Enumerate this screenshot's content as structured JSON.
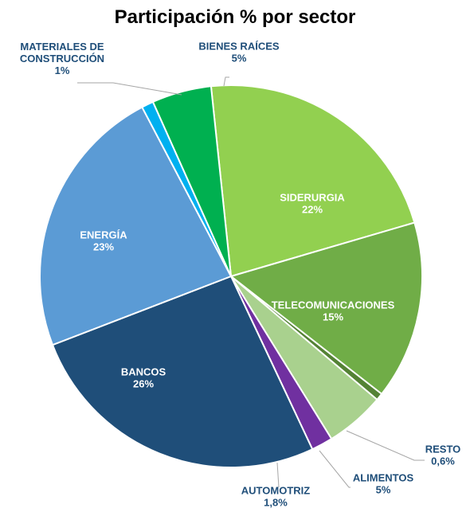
{
  "chart_data": {
    "type": "pie",
    "title": "Participación % por sector",
    "start_angle_deg": -6,
    "direction": "clockwise",
    "legend": "none",
    "slices": [
      {
        "name": "SIDERURGIA",
        "value": 22,
        "value_label": "22%",
        "color": "#92D050",
        "label_color": "#FFFFFF",
        "label_pos": "inside"
      },
      {
        "name": "TELECOMUNICACIONES",
        "value": 15,
        "value_label": "15%",
        "color": "#70AD47",
        "label_color": "#FFFFFF",
        "label_pos": "inside"
      },
      {
        "name": "RESTO",
        "value": 0.6,
        "value_label": "0,6%",
        "color": "#548235",
        "label_color": "#1F4E79",
        "label_pos": "outside"
      },
      {
        "name": "ALIMENTOS",
        "value": 5,
        "value_label": "5%",
        "color": "#A9D18E",
        "label_color": "#1F4E79",
        "label_pos": "outside"
      },
      {
        "name": "AUTOMOTRIZ",
        "value": 1.8,
        "value_label": "1,8%",
        "color": "#7030A0",
        "label_color": "#1F4E79",
        "label_pos": "outside"
      },
      {
        "name": "BANCOS",
        "value": 26,
        "value_label": "26%",
        "color": "#1F4E79",
        "label_color": "#FFFFFF",
        "label_pos": "inside"
      },
      {
        "name": "ENERGÍA",
        "value": 23,
        "value_label": "23%",
        "color": "#5B9BD5",
        "label_color": "#FFFFFF",
        "label_pos": "inside"
      },
      {
        "name": "MATERIALES DE CONSTRUCCIÓN",
        "value": 1,
        "value_label": "1%",
        "color": "#00B0F0",
        "label_color": "#1F4E79",
        "label_pos": "outside"
      },
      {
        "name": "BIENES RAÍCES",
        "value": 5,
        "value_label": "5%",
        "color": "#00B050",
        "label_color": "#1F4E79",
        "label_pos": "outside"
      }
    ]
  }
}
